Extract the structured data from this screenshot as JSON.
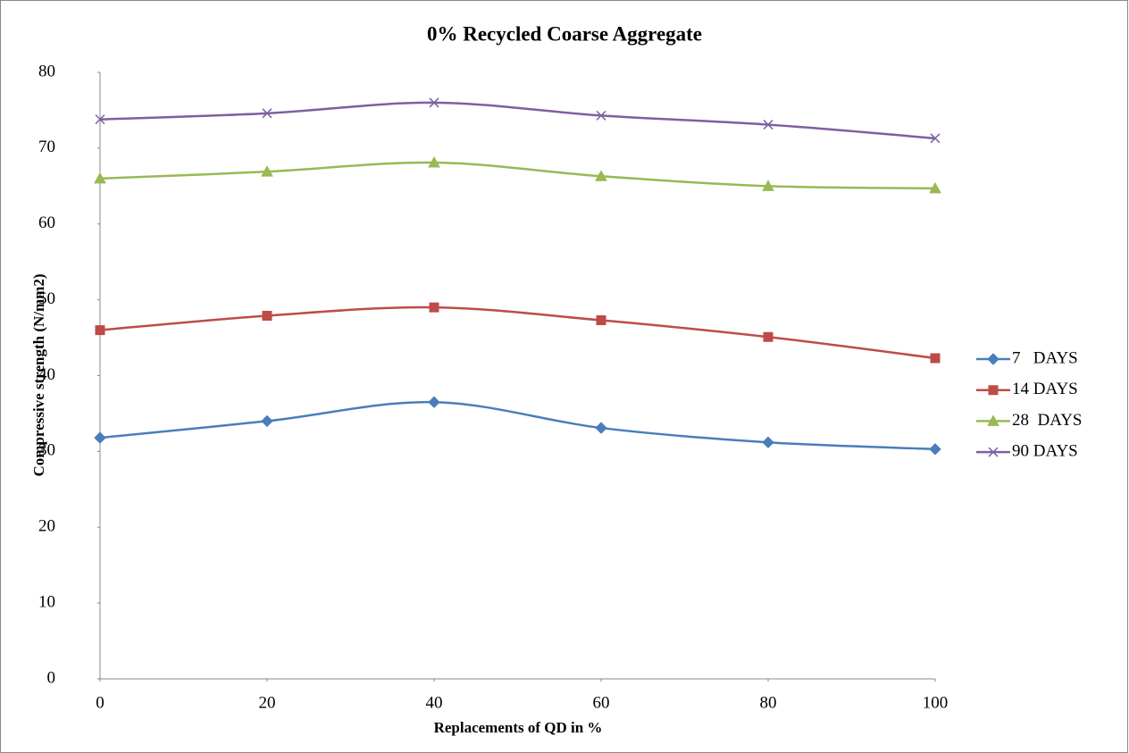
{
  "chart_data": {
    "type": "line",
    "title": "0% Recycled Coarse Aggregate",
    "x_label": "Replacements of QD in %",
    "y_label": "Compressive strength (N/mm2)",
    "x": [
      0,
      20,
      40,
      60,
      80,
      100
    ],
    "xlim": [
      0,
      100
    ],
    "xticks": [
      0,
      20,
      40,
      60,
      80,
      100
    ],
    "ylim": [
      0,
      80
    ],
    "yticks": [
      0,
      10,
      20,
      30,
      40,
      50,
      60,
      70,
      80
    ],
    "smooth": true,
    "grid": false,
    "legend": "right",
    "series": [
      {
        "name": "7   DAYS",
        "color": "#4a7ebb",
        "marker": "diamond",
        "values": [
          31.8,
          34,
          36.5,
          33.1,
          31.2,
          30.3
        ]
      },
      {
        "name": "14 DAYS",
        "color": "#be4b48",
        "marker": "square",
        "values": [
          46,
          47.9,
          49,
          47.3,
          45.1,
          42.3
        ]
      },
      {
        "name": "28  DAYS",
        "color": "#98b954",
        "marker": "triangle",
        "values": [
          66,
          66.9,
          68.1,
          66.3,
          65,
          64.7
        ]
      },
      {
        "name": "90 DAYS",
        "color": "#7d60a0",
        "marker": "x",
        "values": [
          73.8,
          74.6,
          76,
          74.3,
          73.1,
          71.3
        ]
      }
    ]
  }
}
